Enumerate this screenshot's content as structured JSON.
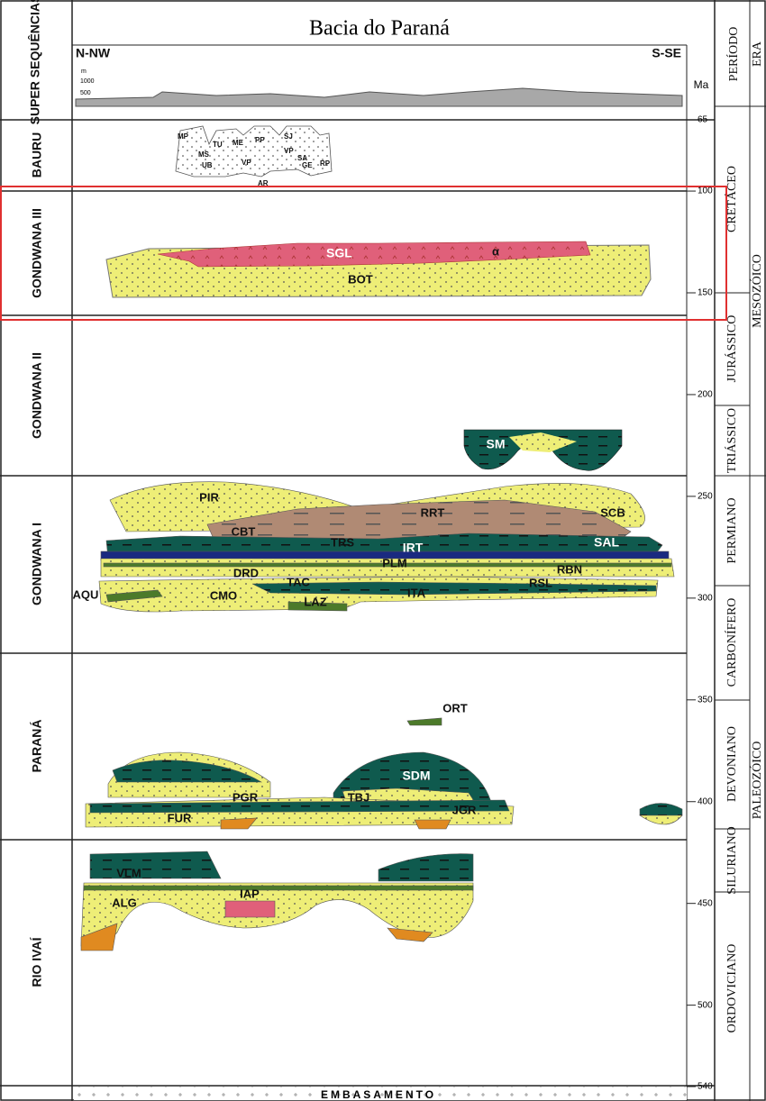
{
  "header": {
    "title": "Bacia do Paraná",
    "left_direction": "N-NW",
    "right_direction": "S-SE",
    "elevation_unit": "m",
    "elevation_ticks": [
      "1000",
      "500",
      "0"
    ],
    "supersequence_heading": "SUPER SEQUÊNCIAS",
    "period_heading": "PERÍODO",
    "era_heading": "ERA"
  },
  "time_axis": {
    "label": "Ma",
    "ticks": [
      65,
      100,
      150,
      200,
      250,
      300,
      350,
      400,
      450,
      500,
      540
    ]
  },
  "supersequences": [
    "BAURU",
    "GONDWANA III",
    "GONDWANA II",
    "GONDWANA I",
    "PARANÁ",
    "RIO IVAÍ"
  ],
  "periods": [
    "CRETÁCEO",
    "JURÁSSICO",
    "TRIÁSSICO",
    "PERMIANO",
    "CARBONÍFERO",
    "DEVONIANO",
    "SILURIANO",
    "ORDOVICIANO"
  ],
  "eras": [
    "MESOZÓICO",
    "PALEOZÓICO"
  ],
  "formations": {
    "bauru": [
      "MP",
      "TU",
      "ME",
      "PP",
      "SJ",
      "MS",
      "UB",
      "VP",
      "VP",
      "SA",
      "GE",
      "RP",
      "AR"
    ],
    "gondwana_iii": [
      "SGL",
      "α",
      "BOT"
    ],
    "gondwana_ii": [
      "SM"
    ],
    "gondwana_i": [
      "PIR",
      "RRT",
      "SCB",
      "CBT",
      "TRS",
      "IRT",
      "SAL",
      "PLM",
      "DRD",
      "TAC",
      "RBN",
      "RSL",
      "AQU",
      "CMO",
      "ITA",
      "LAZ"
    ],
    "parana": [
      "ORT",
      "SDM",
      "PGR",
      "TBJ",
      "FUR",
      "JGR"
    ],
    "rio_ivai": [
      "VLM",
      "IAP",
      "ALG"
    ]
  },
  "basement": "EMBASAMENTO"
}
